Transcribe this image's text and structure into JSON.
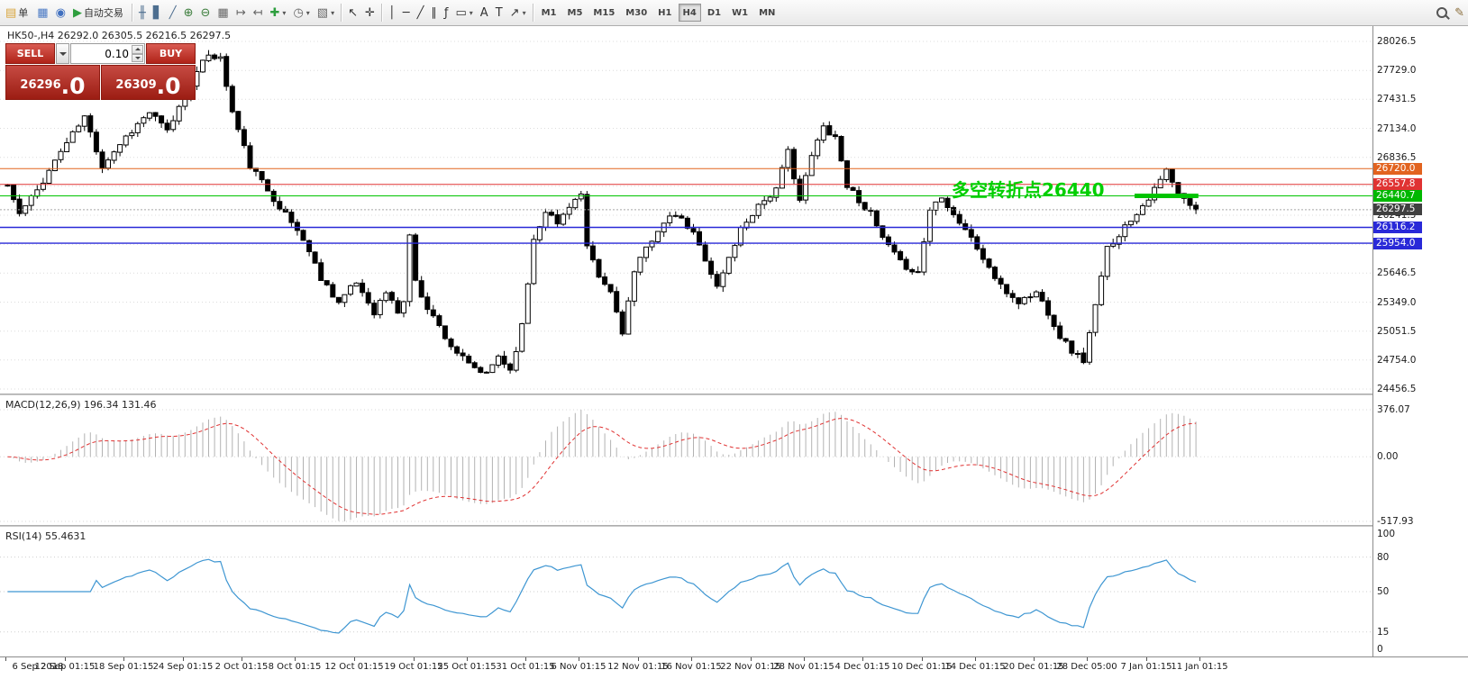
{
  "toolbar": {
    "items": [
      {
        "t": "btn",
        "n": "new-order-button",
        "g": "▤",
        "gc": "#d9a43a",
        "label": "单"
      },
      {
        "t": "btn",
        "n": "chart-window-icon",
        "g": "▦",
        "gc": "#4a79c4"
      },
      {
        "t": "btn",
        "n": "help-icon",
        "g": "◉",
        "gc": "#3f6fbf"
      },
      {
        "t": "btn",
        "n": "autotrading-button",
        "g": "▶",
        "gc": "#2e9e3e",
        "label": "自动交易"
      },
      {
        "t": "sep"
      },
      {
        "t": "btn",
        "n": "bar-chart-button",
        "g": "╫",
        "gc": "#4d6e8f"
      },
      {
        "t": "btn",
        "n": "candlestick-button",
        "g": "▋",
        "gc": "#4d6e8f"
      },
      {
        "t": "btn",
        "n": "line-chart-button",
        "g": "╱",
        "gc": "#4d6e8f"
      },
      {
        "t": "btn",
        "n": "zoom-in-button",
        "g": "⊕",
        "gc": "#3c7d3c"
      },
      {
        "t": "btn",
        "n": "zoom-out-button",
        "g": "⊖",
        "gc": "#3c7d3c"
      },
      {
        "t": "btn",
        "n": "tile-windows-button",
        "g": "▦",
        "gc": "#666666"
      },
      {
        "t": "btn",
        "n": "auto-scroll-button",
        "g": "↦",
        "gc": "#666666"
      },
      {
        "t": "btn",
        "n": "chart-shift-button",
        "g": "↤",
        "gc": "#666666"
      },
      {
        "t": "btn",
        "n": "indicators-button",
        "g": "✚",
        "gc": "#2e9e3e",
        "g2": "▾"
      },
      {
        "t": "btn",
        "n": "periods-button",
        "g": "◷",
        "gc": "#666666",
        "g2": "▾"
      },
      {
        "t": "btn",
        "n": "templates-button",
        "g": "▧",
        "gc": "#666666",
        "g2": "▾"
      },
      {
        "t": "sep"
      },
      {
        "t": "btn",
        "n": "cursor-button",
        "g": "↖",
        "gc": "#333333"
      },
      {
        "t": "btn",
        "n": "crosshair-button",
        "g": "✛",
        "gc": "#333333"
      },
      {
        "t": "sep"
      },
      {
        "t": "btn",
        "n": "vertical-line-button",
        "g": "│",
        "gc": "#333333"
      },
      {
        "t": "btn",
        "n": "horizontal-line-button",
        "g": "─",
        "gc": "#333333"
      },
      {
        "t": "btn",
        "n": "trendline-button",
        "g": "╱",
        "gc": "#333333"
      },
      {
        "t": "btn",
        "n": "channel-button",
        "g": "∥",
        "gc": "#333333"
      },
      {
        "t": "btn",
        "n": "fibonacci-button",
        "g": "ƒ",
        "gc": "#333333"
      },
      {
        "t": "btn",
        "n": "shapes-button",
        "g": "▭",
        "gc": "#333333",
        "g2": "▾"
      },
      {
        "t": "btn",
        "n": "text-button",
        "g": "A",
        "gc": "#333333"
      },
      {
        "t": "btn",
        "n": "label-button",
        "g": "T",
        "gc": "#333333"
      },
      {
        "t": "btn",
        "n": "arrows-button",
        "g": "↗",
        "gc": "#333333",
        "g2": "▾"
      },
      {
        "t": "sep"
      },
      {
        "t": "tf",
        "n": "timeframe-m1",
        "label": "M1"
      },
      {
        "t": "tf",
        "n": "timeframe-m5",
        "label": "M5"
      },
      {
        "t": "tf",
        "n": "timeframe-m15",
        "label": "M15"
      },
      {
        "t": "tf",
        "n": "timeframe-m30",
        "label": "M30"
      },
      {
        "t": "tf",
        "n": "timeframe-h1",
        "label": "H1"
      },
      {
        "t": "tf",
        "n": "timeframe-h4",
        "label": "H4",
        "active": true
      },
      {
        "t": "tf",
        "n": "timeframe-d1",
        "label": "D1"
      },
      {
        "t": "tf",
        "n": "timeframe-w1",
        "label": "W1"
      },
      {
        "t": "tf",
        "n": "timeframe-mn",
        "label": "MN"
      },
      {
        "t": "flex"
      },
      {
        "t": "btn",
        "n": "search-icon",
        "css": "magnifier"
      },
      {
        "t": "btn",
        "n": "edit-icon",
        "g": "✎",
        "gc": "#8a6d3b"
      }
    ]
  },
  "chart": {
    "symbol_header": "HK50-,H4 26292.0 26305.5 26216.5 26297.5",
    "trade_panel": {
      "sell_label": "SELL",
      "buy_label": "BUY",
      "volume": "0.10",
      "sell_price_main": "26296",
      "sell_price_big": ".0",
      "buy_price_main": "26309",
      "buy_price_big": ".0"
    },
    "annotation": {
      "text": "多空转折点26440",
      "color": "#00cf00"
    }
  },
  "chart_data": {
    "type": "candlestick",
    "symbol": "HK50-",
    "timeframe": "H4",
    "main": {
      "price_max": 28026.5,
      "price_min": 24456.5,
      "grid_step": 297.5,
      "grid_lines": [
        28026.5,
        27729.0,
        27431.5,
        27134.0,
        26836.5,
        26539.0,
        26241.5,
        25944.0,
        25646.5,
        25349.0,
        25051.5,
        24754.0,
        24456.5
      ],
      "grid_labels_visible": [
        28026.5,
        27729.0,
        27431.5,
        27134.0,
        26836.5,
        26241.5,
        25646.5,
        25349.0,
        25051.5,
        24754.0,
        24456.5
      ],
      "levels": [
        {
          "name": "level-line-26720",
          "price": 26720.0,
          "color": "#e2631f",
          "tag_color": "#e2631f",
          "width": 1,
          "dash": ""
        },
        {
          "name": "level-line-26557",
          "price": 26557.8,
          "color": "#e03333",
          "tag_color": "#e03333",
          "width": 1,
          "dash": ""
        },
        {
          "name": "level-line-26440",
          "price": 26440.7,
          "color": "#00c400",
          "tag_color": "#00b800",
          "width": 1,
          "dash": "",
          "thick_from": 191,
          "thick_to": 201.8
        },
        {
          "name": "current-price-line",
          "price": 26297.5,
          "color": "#a8a8a8",
          "tag_color": "#404040",
          "width": 1,
          "dash": "2,2"
        },
        {
          "name": "level-line-26116",
          "price": 26116.2,
          "color": "#2929d8",
          "tag_color": "#2929d8",
          "width": 1.4,
          "dash": ""
        },
        {
          "name": "level-line-25954",
          "price": 25954.0,
          "color": "#2929d8",
          "tag_color": "#2929d8",
          "width": 1.4,
          "dash": ""
        }
      ],
      "candles": {
        "count": 202,
        "seed": 11,
        "noise": 35,
        "wick": 55,
        "up_color": "#ffffff",
        "down_color": "#000000",
        "outline": "#000000",
        "anchors": [
          [
            0,
            26550
          ],
          [
            2,
            26250
          ],
          [
            5,
            26500
          ],
          [
            9,
            26900
          ],
          [
            13,
            27250
          ],
          [
            16,
            26750
          ],
          [
            20,
            27050
          ],
          [
            24,
            27300
          ],
          [
            27,
            27100
          ],
          [
            31,
            27600
          ],
          [
            34,
            27900
          ],
          [
            36,
            27850
          ],
          [
            38,
            27300
          ],
          [
            41,
            26750
          ],
          [
            44,
            26500
          ],
          [
            47,
            26250
          ],
          [
            50,
            26000
          ],
          [
            53,
            25600
          ],
          [
            56,
            25350
          ],
          [
            59,
            25550
          ],
          [
            62,
            25250
          ],
          [
            64,
            25450
          ],
          [
            66,
            25250
          ],
          [
            67,
            25350
          ],
          [
            68,
            26050
          ],
          [
            69,
            25550
          ],
          [
            71,
            25300
          ],
          [
            73,
            25100
          ],
          [
            75,
            24900
          ],
          [
            78,
            24700
          ],
          [
            81,
            24600
          ],
          [
            83,
            24800
          ],
          [
            85,
            24650
          ],
          [
            87,
            25100
          ],
          [
            89,
            26000
          ],
          [
            91,
            26300
          ],
          [
            93,
            26150
          ],
          [
            95,
            26350
          ],
          [
            97,
            26450
          ],
          [
            98,
            25900
          ],
          [
            100,
            25600
          ],
          [
            102,
            25450
          ],
          [
            104,
            25050
          ],
          [
            106,
            25650
          ],
          [
            108,
            25900
          ],
          [
            110,
            26100
          ],
          [
            113,
            26250
          ],
          [
            116,
            26050
          ],
          [
            118,
            25800
          ],
          [
            120,
            25500
          ],
          [
            122,
            25800
          ],
          [
            124,
            26100
          ],
          [
            127,
            26350
          ],
          [
            130,
            26500
          ],
          [
            132,
            26900
          ],
          [
            134,
            26400
          ],
          [
            136,
            26850
          ],
          [
            138,
            27150
          ],
          [
            140,
            27050
          ],
          [
            142,
            26550
          ],
          [
            144,
            26400
          ],
          [
            146,
            26250
          ],
          [
            148,
            26000
          ],
          [
            151,
            25750
          ],
          [
            154,
            25650
          ],
          [
            156,
            26300
          ],
          [
            158,
            26450
          ],
          [
            160,
            26250
          ],
          [
            162,
            26100
          ],
          [
            164,
            25900
          ],
          [
            166,
            25700
          ],
          [
            168,
            25500
          ],
          [
            171,
            25350
          ],
          [
            174,
            25450
          ],
          [
            176,
            25250
          ],
          [
            178,
            25000
          ],
          [
            180,
            24850
          ],
          [
            182,
            24750
          ],
          [
            184,
            25300
          ],
          [
            186,
            25900
          ],
          [
            188,
            26050
          ],
          [
            190,
            26200
          ],
          [
            192,
            26350
          ],
          [
            194,
            26500
          ],
          [
            196,
            26700
          ],
          [
            198,
            26450
          ],
          [
            200,
            26350
          ],
          [
            201,
            26297.5
          ]
        ]
      }
    },
    "macd": {
      "header": "MACD(12,26,9) 196.34 131.46",
      "fast": 12,
      "slow": 26,
      "signal": 9,
      "axis_max": 376.07,
      "axis_min": -517.93,
      "axis_labels": [
        "376.07",
        "0.00",
        "-517.93"
      ],
      "histogram_color": "#b2b2b2",
      "signal_color": "#e03131"
    },
    "rsi": {
      "header": "RSI(14) 55.4631",
      "period": 14,
      "levels": [
        80,
        50,
        15
      ],
      "axis_labels": [
        "100",
        "80",
        "50",
        "15",
        "0"
      ],
      "axis_values": [
        100,
        80,
        50,
        15,
        0
      ],
      "line_color": "#3e96d2"
    },
    "time_axis": [
      {
        "i": 0,
        "t": "6 Sep 2018"
      },
      {
        "i": 10,
        "t": "12 Sep 01:15"
      },
      {
        "i": 20,
        "t": "18 Sep 01:15"
      },
      {
        "i": 30,
        "t": "24 Sep 01:15"
      },
      {
        "i": 40,
        "t": "2 Oct 01:15"
      },
      {
        "i": 49,
        "t": "8 Oct 01:15"
      },
      {
        "i": 59,
        "t": "12 Oct 01:15"
      },
      {
        "i": 69,
        "t": "19 Oct 01:15"
      },
      {
        "i": 78,
        "t": "25 Oct 01:15"
      },
      {
        "i": 88,
        "t": "31 Oct 01:15"
      },
      {
        "i": 97,
        "t": "6 Nov 01:15"
      },
      {
        "i": 107,
        "t": "12 Nov 01:15"
      },
      {
        "i": 116,
        "t": "16 Nov 01:15"
      },
      {
        "i": 126,
        "t": "22 Nov 01:15"
      },
      {
        "i": 135,
        "t": "28 Nov 01:15"
      },
      {
        "i": 145,
        "t": "4 Dec 01:15"
      },
      {
        "i": 155,
        "t": "10 Dec 01:15"
      },
      {
        "i": 164,
        "t": "14 Dec 01:15"
      },
      {
        "i": 174,
        "t": "20 Dec 01:15"
      },
      {
        "i": 183,
        "t": "28 Dec 05:00"
      },
      {
        "i": 193,
        "t": "7 Jan 01:15"
      },
      {
        "i": 202,
        "t": "11 Jan 01:15"
      }
    ]
  }
}
